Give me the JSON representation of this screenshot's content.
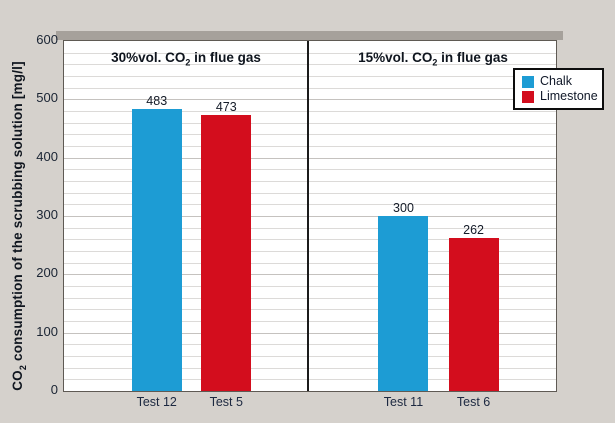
{
  "figure": {
    "y_axis_title": {
      "pre": "CO",
      "sub": "2",
      "post": " consumption of the scrubbing solution [mg/l]"
    }
  },
  "chart_data": {
    "type": "bar",
    "ylabel": "CO2 consumption of the scrubbing solution [mg/l]",
    "ylim": [
      0,
      600
    ],
    "ytick_step": 100,
    "minor_gridline_step": 20,
    "yticks": [
      600,
      500,
      400,
      300,
      200,
      100,
      0
    ],
    "grid": "horizontal",
    "panels": [
      {
        "title": {
          "pre": "30%vol. CO",
          "sub": "2",
          "post": " in flue gas"
        },
        "bars": [
          {
            "category": "Test 12",
            "series": "Chalk",
            "value": 483
          },
          {
            "category": "Test 5",
            "series": "Limestone",
            "value": 473
          }
        ]
      },
      {
        "title": {
          "pre": "15%vol. CO",
          "sub": "2",
          "post": " in flue gas"
        },
        "bars": [
          {
            "category": "Test 11",
            "series": "Chalk",
            "value": 300
          },
          {
            "category": "Test 6",
            "series": "Limestone",
            "value": 262
          }
        ]
      }
    ],
    "legend": {
      "position": "top-right",
      "items": [
        {
          "label": "Chalk",
          "color": "#1d9cd4"
        },
        {
          "label": "Limestone",
          "color": "#d30d1d"
        }
      ]
    }
  },
  "colors": {
    "chalk": "#1d9cd4",
    "limestone": "#d30d1d",
    "background": "#d5d1cc",
    "plot_background": "#ffffff",
    "shadow_band": "#a6a19b",
    "divider": "#1b1b1b"
  }
}
